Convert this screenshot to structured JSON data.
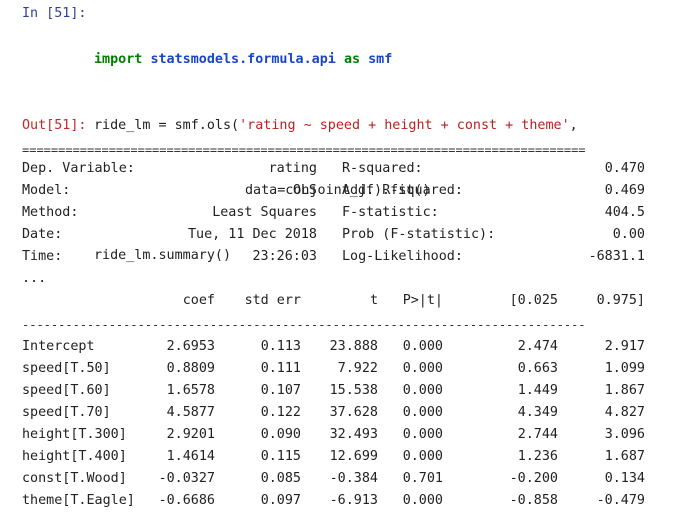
{
  "input_cell": {
    "prompt": "In [51]:",
    "line1": {
      "kw_import": "import",
      "module": "statsmodels.formula.api",
      "kw_as": "as",
      "alias": "smf"
    },
    "line2_prefix": "ride_lm = smf.ols(",
    "line2_string": "'rating ~ speed + height + const + theme'",
    "line2_suffix": ",",
    "line3": "data=conjoint_df).fit()",
    "line4": "ride_lm.summary()"
  },
  "output_cell": {
    "prompt": "Out[51]:",
    "double_rule": "==============================================================================",
    "single_rule": "------------------------------------------------------------------------------",
    "ellipsis": "...",
    "stats": [
      {
        "label": "Dep. Variable:",
        "value": "rating",
        "label2": "R-squared:",
        "value2": "0.470"
      },
      {
        "label": "Model:",
        "value": "OLS",
        "label2": "Adj. R-squared:",
        "value2": "0.469"
      },
      {
        "label": "Method:",
        "value": "Least Squares",
        "label2": "F-statistic:",
        "value2": "404.5"
      },
      {
        "label": "Date:",
        "value": "Tue, 11 Dec 2018",
        "label2": "Prob (F-statistic):",
        "value2": "0.00"
      },
      {
        "label": "Time:",
        "value": "23:26:03",
        "label2": "Log-Likelihood:",
        "value2": "-6831.1"
      }
    ],
    "columns": [
      "coef",
      "std err",
      "t",
      "P>|t|",
      "[0.025",
      "0.975]"
    ],
    "rows": [
      {
        "name": "Intercept",
        "coef": "2.6953",
        "se": "0.113",
        "t": "23.888",
        "p": "0.000",
        "lo": "2.474",
        "hi": "2.917"
      },
      {
        "name": "speed[T.50]",
        "coef": "0.8809",
        "se": "0.111",
        "t": "7.922",
        "p": "0.000",
        "lo": "0.663",
        "hi": "1.099"
      },
      {
        "name": "speed[T.60]",
        "coef": "1.6578",
        "se": "0.107",
        "t": "15.538",
        "p": "0.000",
        "lo": "1.449",
        "hi": "1.867"
      },
      {
        "name": "speed[T.70]",
        "coef": "4.5877",
        "se": "0.122",
        "t": "37.628",
        "p": "0.000",
        "lo": "4.349",
        "hi": "4.827"
      },
      {
        "name": "height[T.300]",
        "coef": "2.9201",
        "se": "0.090",
        "t": "32.493",
        "p": "0.000",
        "lo": "2.744",
        "hi": "3.096"
      },
      {
        "name": "height[T.400]",
        "coef": "1.4614",
        "se": "0.115",
        "t": "12.699",
        "p": "0.000",
        "lo": "1.236",
        "hi": "1.687"
      },
      {
        "name": "const[T.Wood]",
        "coef": "-0.0327",
        "se": "0.085",
        "t": "-0.384",
        "p": "0.701",
        "lo": "-0.200",
        "hi": "0.134"
      },
      {
        "name": "theme[T.Eagle]",
        "coef": "-0.6686",
        "se": "0.097",
        "t": "-6.913",
        "p": "0.000",
        "lo": "-0.858",
        "hi": "-0.479"
      }
    ]
  }
}
